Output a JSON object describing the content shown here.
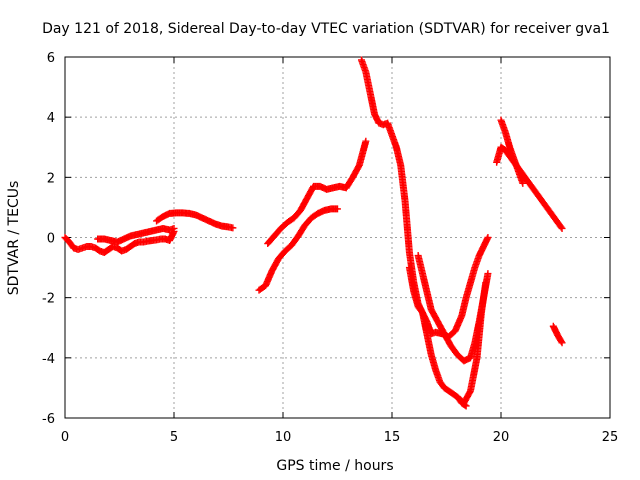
{
  "chart_data": {
    "type": "scatter",
    "title": "Day 121 of 2018, Sidereal Day-to-day VTEC variation (SDTVAR) for receiver gva1",
    "xlabel": "GPS time / hours",
    "ylabel": "SDTVAR / TECUs",
    "xlim": [
      0,
      25
    ],
    "ylim": [
      -6,
      6
    ],
    "x_ticks": [
      "0",
      "5",
      "10",
      "15",
      "20",
      "25"
    ],
    "y_ticks": [
      "-6",
      "-4",
      "-2",
      "0",
      "2",
      "4",
      "6"
    ],
    "grid": true,
    "color": "#ff0000",
    "marker": "plus",
    "series": [
      {
        "x": [
          0.0,
          0.2,
          0.4,
          0.6,
          0.8,
          1.0,
          1.2,
          1.4,
          1.6,
          1.8,
          2.0,
          2.2,
          2.4,
          2.6,
          2.8,
          3.0,
          3.2,
          3.4,
          3.6,
          3.8,
          4.0,
          4.2,
          4.4,
          4.6,
          4.8,
          5.0
        ],
        "y": [
          0.0,
          -0.15,
          -0.35,
          -0.4,
          -0.35,
          -0.3,
          -0.3,
          -0.35,
          -0.45,
          -0.5,
          -0.4,
          -0.3,
          -0.35,
          -0.45,
          -0.4,
          -0.3,
          -0.2,
          -0.15,
          -0.15,
          -0.12,
          -0.1,
          -0.08,
          -0.05,
          -0.05,
          -0.1,
          0.2
        ]
      },
      {
        "x": [
          1.5,
          1.8,
          2.1,
          2.4,
          2.7,
          3.0,
          3.3,
          3.6,
          3.9,
          4.2,
          4.5,
          4.8,
          5.0
        ],
        "y": [
          -0.05,
          -0.05,
          -0.1,
          -0.15,
          -0.05,
          0.05,
          0.1,
          0.15,
          0.2,
          0.25,
          0.3,
          0.25,
          0.3
        ]
      },
      {
        "x": [
          4.2,
          4.5,
          4.8,
          5.1,
          5.4,
          5.7,
          6.0,
          6.3,
          6.6,
          6.9,
          7.2,
          7.5,
          7.7
        ],
        "y": [
          0.55,
          0.7,
          0.8,
          0.82,
          0.82,
          0.8,
          0.75,
          0.65,
          0.55,
          0.45,
          0.38,
          0.35,
          0.32
        ]
      },
      {
        "x": [
          8.9,
          9.2,
          9.5,
          9.8,
          10.1,
          10.4,
          10.7,
          11.0,
          11.3,
          11.6,
          11.9,
          12.2,
          12.5
        ],
        "y": [
          -1.75,
          -1.6,
          -1.1,
          -0.7,
          -0.45,
          -0.25,
          0.05,
          0.4,
          0.65,
          0.8,
          0.9,
          0.95,
          0.95
        ]
      },
      {
        "x": [
          9.3,
          9.6,
          9.9,
          10.2,
          10.5,
          10.8,
          11.1,
          11.4,
          11.7,
          12.0,
          12.3,
          12.6,
          12.9,
          13.2,
          13.5,
          13.8
        ],
        "y": [
          -0.2,
          0.05,
          0.3,
          0.5,
          0.65,
          0.9,
          1.3,
          1.7,
          1.7,
          1.6,
          1.65,
          1.7,
          1.65,
          2.0,
          2.4,
          3.2
        ]
      },
      {
        "x": [
          13.6,
          13.8,
          14.0,
          14.2,
          14.4,
          14.6,
          14.8,
          15.0,
          15.2,
          15.4,
          15.6,
          15.8,
          16.0,
          16.2,
          16.4,
          16.6,
          16.8,
          17.0,
          17.3,
          17.6,
          17.9,
          18.2,
          18.4,
          18.6,
          18.8,
          19.0,
          19.2,
          19.4
        ],
        "y": [
          5.9,
          5.5,
          4.8,
          4.1,
          3.8,
          3.75,
          3.8,
          3.4,
          3.0,
          2.4,
          1.2,
          -0.5,
          -1.5,
          -2.2,
          -2.5,
          -2.8,
          -3.2,
          -3.15,
          -3.2,
          -3.3,
          -3.1,
          -2.6,
          -2.0,
          -1.5,
          -1.0,
          -0.6,
          -0.3,
          0.0
        ]
      },
      {
        "x": [
          15.8,
          16.0,
          16.2,
          16.4,
          16.6,
          16.8,
          17.0,
          17.2,
          17.4,
          17.6,
          17.8,
          18.0,
          18.2,
          18.4
        ],
        "y": [
          -1.0,
          -1.8,
          -2.3,
          -2.5,
          -3.2,
          -3.9,
          -4.4,
          -4.8,
          -5.0,
          -5.1,
          -5.2,
          -5.3,
          -5.5,
          -5.6
        ]
      },
      {
        "x": [
          16.2,
          16.5,
          16.8,
          17.1,
          17.4,
          17.7,
          18.0,
          18.3,
          18.6,
          18.8,
          19.0,
          19.2,
          19.4
        ],
        "y": [
          -0.6,
          -1.5,
          -2.4,
          -2.8,
          -3.2,
          -3.6,
          -3.9,
          -4.1,
          -4.0,
          -3.5,
          -2.8,
          -2.0,
          -1.2
        ]
      },
      {
        "x": [
          18.0,
          18.3,
          18.6,
          18.9,
          19.1,
          19.3
        ],
        "y": [
          -5.3,
          -5.5,
          -5.1,
          -4.0,
          -2.5,
          -1.5
        ]
      },
      {
        "x": [
          19.8,
          20.0,
          20.2,
          20.4,
          20.6,
          20.8,
          21.0,
          21.3,
          21.6,
          21.9,
          22.2,
          22.5,
          22.8
        ],
        "y": [
          2.5,
          3.0,
          2.9,
          2.7,
          2.5,
          2.3,
          2.1,
          1.8,
          1.5,
          1.2,
          0.9,
          0.6,
          0.3
        ]
      },
      {
        "x": [
          20.0,
          20.2,
          20.4,
          20.6,
          20.8,
          21.0
        ],
        "y": [
          3.9,
          3.5,
          3.0,
          2.6,
          2.2,
          1.8
        ]
      },
      {
        "x": [
          22.4,
          22.6,
          22.8
        ],
        "y": [
          -2.95,
          -3.25,
          -3.5
        ]
      }
    ]
  }
}
